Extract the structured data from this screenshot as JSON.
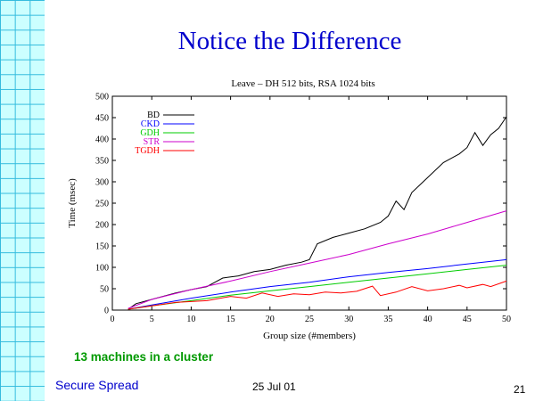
{
  "slide": {
    "title": "Notice the Difference",
    "note": "13 machines in a cluster",
    "footer_left": "Secure Spread",
    "footer_date": "25 Jul 01",
    "page_number": "21"
  },
  "chart_data": {
    "type": "line",
    "title": "Leave – DH 512 bits, RSA 1024 bits",
    "xlabel": "Group size (#members)",
    "ylabel": "Time (msec)",
    "xlim": [
      0,
      50
    ],
    "ylim": [
      0,
      500
    ],
    "xticks": [
      0,
      5,
      10,
      15,
      20,
      25,
      30,
      35,
      40,
      45,
      50
    ],
    "yticks": [
      0,
      50,
      100,
      150,
      200,
      250,
      300,
      350,
      400,
      450,
      500
    ],
    "grid": false,
    "legend_position": "top-left",
    "series": [
      {
        "name": "BD",
        "color": "#000000",
        "points": [
          [
            2,
            2
          ],
          [
            3,
            15
          ],
          [
            5,
            25
          ],
          [
            8,
            40
          ],
          [
            10,
            48
          ],
          [
            12,
            55
          ],
          [
            13,
            65
          ],
          [
            14,
            75
          ],
          [
            16,
            80
          ],
          [
            18,
            90
          ],
          [
            20,
            95
          ],
          [
            22,
            105
          ],
          [
            24,
            112
          ],
          [
            25,
            118
          ],
          [
            26,
            155
          ],
          [
            28,
            170
          ],
          [
            30,
            180
          ],
          [
            32,
            190
          ],
          [
            34,
            205
          ],
          [
            35,
            220
          ],
          [
            36,
            255
          ],
          [
            37,
            235
          ],
          [
            38,
            275
          ],
          [
            40,
            310
          ],
          [
            42,
            345
          ],
          [
            44,
            365
          ],
          [
            45,
            380
          ],
          [
            46,
            415
          ],
          [
            47,
            385
          ],
          [
            48,
            410
          ],
          [
            49,
            425
          ],
          [
            50,
            452
          ]
        ]
      },
      {
        "name": "CKD",
        "color": "#0000ff",
        "points": [
          [
            2,
            2
          ],
          [
            5,
            12
          ],
          [
            10,
            28
          ],
          [
            15,
            42
          ],
          [
            20,
            55
          ],
          [
            25,
            65
          ],
          [
            30,
            78
          ],
          [
            35,
            88
          ],
          [
            40,
            97
          ],
          [
            45,
            108
          ],
          [
            50,
            118
          ]
        ]
      },
      {
        "name": "GDH",
        "color": "#00cc00",
        "points": [
          [
            2,
            2
          ],
          [
            5,
            10
          ],
          [
            10,
            22
          ],
          [
            15,
            35
          ],
          [
            20,
            45
          ],
          [
            25,
            55
          ],
          [
            30,
            65
          ],
          [
            35,
            75
          ],
          [
            40,
            85
          ],
          [
            45,
            95
          ],
          [
            50,
            105
          ]
        ]
      },
      {
        "name": "STR",
        "color": "#cc00cc",
        "points": [
          [
            2,
            4
          ],
          [
            5,
            25
          ],
          [
            10,
            48
          ],
          [
            15,
            68
          ],
          [
            20,
            90
          ],
          [
            25,
            110
          ],
          [
            30,
            130
          ],
          [
            35,
            155
          ],
          [
            40,
            178
          ],
          [
            45,
            205
          ],
          [
            50,
            232
          ]
        ]
      },
      {
        "name": "TGDH",
        "color": "#ff0000",
        "points": [
          [
            2,
            2
          ],
          [
            5,
            10
          ],
          [
            8,
            18
          ],
          [
            10,
            20
          ],
          [
            12,
            22
          ],
          [
            15,
            32
          ],
          [
            17,
            28
          ],
          [
            19,
            40
          ],
          [
            21,
            32
          ],
          [
            23,
            38
          ],
          [
            25,
            36
          ],
          [
            27,
            42
          ],
          [
            29,
            40
          ],
          [
            31,
            44
          ],
          [
            33,
            56
          ],
          [
            34,
            34
          ],
          [
            36,
            42
          ],
          [
            38,
            55
          ],
          [
            40,
            45
          ],
          [
            42,
            50
          ],
          [
            44,
            58
          ],
          [
            45,
            52
          ],
          [
            47,
            60
          ],
          [
            48,
            55
          ],
          [
            50,
            68
          ]
        ]
      }
    ]
  }
}
